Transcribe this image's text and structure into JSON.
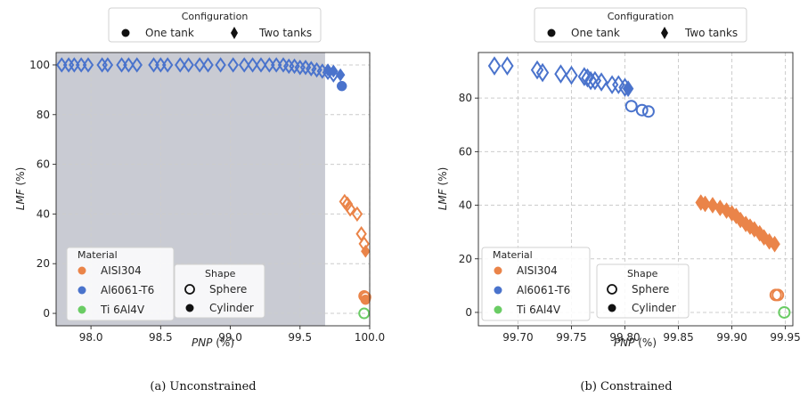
{
  "colors": {
    "aisi304": "#ea8449",
    "al6061": "#4a73cc",
    "ti6al4v": "#6acc64",
    "shade": "#c9cbd3",
    "grid": "#cccccc"
  },
  "legends": {
    "configuration_title": "Configuration",
    "configuration_items": [
      {
        "label": "One tank",
        "marker": "circle"
      },
      {
        "label": "Two tanks",
        "marker": "diamond"
      }
    ],
    "material_title": "Material",
    "material_items": [
      "AISI304",
      "Al6061-T6",
      "Ti 6Al4V"
    ],
    "shape_title": "Shape",
    "shape_items": [
      {
        "label": "Sphere",
        "marker": "hollow-circle"
      },
      {
        "label": "Cylinder",
        "marker": "filled-circle"
      }
    ]
  },
  "chart_data": [
    {
      "type": "scatter",
      "caption": "(a) Unconstrained",
      "xlabel": "PNP (%)",
      "ylabel": "LMF (%)",
      "xlim": [
        97.75,
        100.0
      ],
      "ylim": [
        -5,
        105
      ],
      "xticks": [
        "98.0",
        "98.5",
        "99.0",
        "99.5",
        "100.0"
      ],
      "yticks": [
        "0",
        "20",
        "40",
        "60",
        "80",
        "100"
      ],
      "shaded_region_x": [
        97.75,
        99.68
      ],
      "grid": true,
      "series": [
        {
          "material": "Al6061-T6",
          "config": "Two tanks",
          "shape": "Sphere",
          "points": [
            [
              97.79,
              100
            ],
            [
              97.84,
              100
            ],
            [
              97.88,
              100
            ],
            [
              97.93,
              100
            ],
            [
              97.98,
              100
            ],
            [
              98.08,
              100
            ],
            [
              98.12,
              100
            ],
            [
              98.22,
              100
            ],
            [
              98.27,
              100
            ],
            [
              98.33,
              100
            ],
            [
              98.45,
              100
            ],
            [
              98.5,
              100
            ],
            [
              98.55,
              100
            ],
            [
              98.64,
              100
            ],
            [
              98.7,
              100
            ],
            [
              98.78,
              100
            ],
            [
              98.84,
              100
            ],
            [
              98.93,
              100
            ],
            [
              99.02,
              100
            ],
            [
              99.1,
              100
            ],
            [
              99.16,
              100
            ],
            [
              99.22,
              100
            ],
            [
              99.28,
              100
            ],
            [
              99.33,
              100
            ],
            [
              99.38,
              100
            ],
            [
              99.42,
              99.5
            ],
            [
              99.46,
              99.5
            ],
            [
              99.5,
              99
            ],
            [
              99.54,
              99
            ],
            [
              99.58,
              98.5
            ],
            [
              99.62,
              98
            ],
            [
              99.66,
              97.5
            ],
            [
              99.7,
              97
            ],
            [
              99.74,
              96
            ]
          ]
        },
        {
          "material": "Al6061-T6",
          "config": "Two tanks",
          "shape": "Cylinder",
          "points": [
            [
              99.7,
              98
            ],
            [
              99.74,
              97.5
            ],
            [
              99.79,
              96
            ]
          ]
        },
        {
          "material": "Al6061-T6",
          "config": "One tank",
          "shape": "Cylinder",
          "points": [
            [
              99.8,
              91.5
            ]
          ]
        },
        {
          "material": "AISI304",
          "config": "Two tanks",
          "shape": "Sphere",
          "points": [
            [
              99.82,
              45
            ],
            [
              99.84,
              44
            ],
            [
              99.86,
              42
            ],
            [
              99.91,
              40
            ],
            [
              99.94,
              32
            ],
            [
              99.96,
              28
            ]
          ]
        },
        {
          "material": "AISI304",
          "config": "Two tanks",
          "shape": "Cylinder",
          "points": [
            [
              99.97,
              25
            ]
          ]
        },
        {
          "material": "AISI304",
          "config": "One tank",
          "shape": "Sphere",
          "points": [
            [
              99.96,
              7
            ],
            [
              99.97,
              6.5
            ]
          ]
        },
        {
          "material": "AISI304",
          "config": "One tank",
          "shape": "Cylinder",
          "points": [
            [
              99.97,
              5.5
            ]
          ]
        },
        {
          "material": "Ti 6Al4V",
          "config": "One tank",
          "shape": "Sphere",
          "points": [
            [
              99.96,
              0
            ]
          ]
        }
      ]
    },
    {
      "type": "scatter",
      "caption": "(b) Constrained",
      "xlabel": "PNP (%)",
      "ylabel": "LMF (%)",
      "xlim": [
        99.663,
        99.957
      ],
      "ylim": [
        -5,
        97
      ],
      "xticks": [
        "99.70",
        "99.75",
        "99.80",
        "99.85",
        "99.90",
        "99.95"
      ],
      "yticks": [
        "0",
        "20",
        "40",
        "60",
        "80"
      ],
      "grid": true,
      "series": [
        {
          "material": "Al6061-T6",
          "config": "Two tanks",
          "shape": "Sphere",
          "points": [
            [
              99.678,
              92
            ],
            [
              99.69,
              92
            ],
            [
              99.718,
              90.5
            ],
            [
              99.723,
              89.5
            ],
            [
              99.74,
              89
            ],
            [
              99.75,
              88.5
            ],
            [
              99.762,
              88
            ],
            [
              99.765,
              87.5
            ],
            [
              99.768,
              86.5
            ],
            [
              99.772,
              86.5
            ],
            [
              99.778,
              86
            ],
            [
              99.788,
              85
            ],
            [
              99.794,
              85
            ],
            [
              99.8,
              84
            ]
          ]
        },
        {
          "material": "Al6061-T6",
          "config": "Two tanks",
          "shape": "Cylinder",
          "points": [
            [
              99.803,
              83.5
            ]
          ]
        },
        {
          "material": "Al6061-T6",
          "config": "One tank",
          "shape": "Sphere",
          "points": [
            [
              99.806,
              77
            ],
            [
              99.816,
              75.5
            ],
            [
              99.822,
              75
            ]
          ]
        },
        {
          "material": "AISI304",
          "config": "Two tanks",
          "shape": "Cylinder",
          "points": [
            [
              99.871,
              41
            ],
            [
              99.875,
              40.5
            ],
            [
              99.882,
              40
            ],
            [
              99.889,
              39
            ],
            [
              99.895,
              38
            ],
            [
              99.9,
              37
            ],
            [
              99.904,
              36
            ],
            [
              99.908,
              34.5
            ],
            [
              99.913,
              33
            ],
            [
              99.917,
              32
            ],
            [
              99.921,
              31
            ],
            [
              99.926,
              29.5
            ],
            [
              99.93,
              28
            ],
            [
              99.935,
              26.5
            ],
            [
              99.94,
              25.5
            ]
          ]
        },
        {
          "material": "AISI304",
          "config": "One tank",
          "shape": "Sphere",
          "points": [
            [
              99.941,
              6.5
            ],
            [
              99.943,
              6.5
            ]
          ]
        },
        {
          "material": "Ti 6Al4V",
          "config": "One tank",
          "shape": "Sphere",
          "points": [
            [
              99.949,
              0
            ]
          ]
        }
      ]
    }
  ]
}
